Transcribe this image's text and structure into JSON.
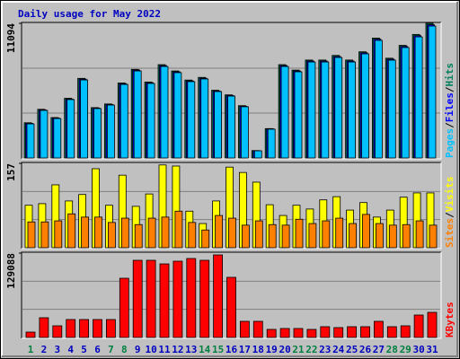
{
  "chart_data": [
    {
      "type": "bar",
      "title": "Daily usage for May 2022",
      "title_color": "#0000c0",
      "series": [
        {
          "name": "Hits",
          "color": "#00805c",
          "values": [
            2900,
            4010,
            3330,
            4920,
            6560,
            4150,
            4450,
            6180,
            7300,
            6260,
            7690,
            7170,
            6420,
            6640,
            5580,
            5200,
            4310,
            610,
            2420,
            7690,
            7240,
            8070,
            8070,
            8450,
            8070,
            8750,
            9880,
            8220,
            9280,
            10180,
            11094
          ]
        },
        {
          "name": "Files",
          "color": "#0000ff",
          "values": [
            2850,
            3960,
            3290,
            4860,
            6500,
            4110,
            4400,
            6120,
            7240,
            6200,
            7610,
            7100,
            6350,
            6570,
            5520,
            5150,
            4260,
            600,
            2400,
            7610,
            7170,
            7990,
            7990,
            8360,
            7990,
            8670,
            9790,
            8140,
            9190,
            10080,
            10980
          ]
        },
        {
          "name": "Pages",
          "color": "#00c0ff",
          "values": [
            2810,
            3920,
            3250,
            4810,
            6430,
            4070,
            4360,
            6060,
            7170,
            6140,
            7540,
            7030,
            6290,
            6510,
            5470,
            5100,
            4220,
            590,
            2370,
            7540,
            7100,
            7910,
            7910,
            8280,
            7910,
            8580,
            9690,
            8060,
            9100,
            9980,
            10870
          ]
        }
      ],
      "ylim": [
        0,
        11094
      ],
      "yticks": [
        11094
      ],
      "separator": "/"
    },
    {
      "type": "bar",
      "series": [
        {
          "name": "Visits",
          "color": "#ffff00",
          "values": [
            79,
            82,
            117,
            87,
            99,
            147,
            79,
            135,
            77,
            100,
            154,
            152,
            68,
            45,
            87,
            150,
            140,
            122,
            80,
            60,
            79,
            72,
            89,
            95,
            70,
            84,
            57,
            70,
            94,
            102,
            102
          ]
        },
        {
          "name": "Sites",
          "color": "#ff8000",
          "values": [
            48,
            48,
            50,
            63,
            57,
            57,
            47,
            55,
            43,
            55,
            57,
            68,
            47,
            33,
            60,
            55,
            42,
            50,
            43,
            42,
            53,
            45,
            50,
            55,
            45,
            62,
            45,
            42,
            43,
            50,
            42
          ]
        }
      ],
      "ylim": [
        0,
        157
      ],
      "yticks": [
        157
      ],
      "separator": "/"
    },
    {
      "type": "bar",
      "series": [
        {
          "name": "KBytes",
          "color": "#ff0000",
          "values": [
            8240,
            30200,
            17850,
            27460,
            27460,
            27460,
            27460,
            90620,
            118080,
            118080,
            112590,
            116710,
            120830,
            118080,
            126320,
            92000,
            24710,
            24710,
            12360,
            13730,
            13730,
            12360,
            16480,
            15100,
            16480,
            16480,
            24710,
            16480,
            17850,
            34330,
            38440
          ]
        }
      ],
      "ylim": [
        0,
        129088
      ],
      "yticks": [
        129088
      ],
      "categories": [
        "1",
        "2",
        "3",
        "4",
        "5",
        "6",
        "7",
        "8",
        "9",
        "10",
        "11",
        "12",
        "13",
        "14",
        "15",
        "16",
        "17",
        "18",
        "19",
        "20",
        "21",
        "22",
        "23",
        "24",
        "25",
        "26",
        "27",
        "28",
        "29",
        "30",
        "31"
      ],
      "category_colors": [
        "#008040",
        "#0000c0",
        "#0000c0",
        "#0000c0",
        "#0000c0",
        "#0000c0",
        "#008040",
        "#008040",
        "#0000c0",
        "#0000c0",
        "#0000c0",
        "#0000c0",
        "#0000c0",
        "#008040",
        "#008040",
        "#0000c0",
        "#0000c0",
        "#0000c0",
        "#0000c0",
        "#0000c0",
        "#008040",
        "#008040",
        "#0000c0",
        "#0000c0",
        "#0000c0",
        "#0000c0",
        "#0000c0",
        "#008040",
        "#008040",
        "#0000c0",
        "#0000c0"
      ]
    }
  ]
}
